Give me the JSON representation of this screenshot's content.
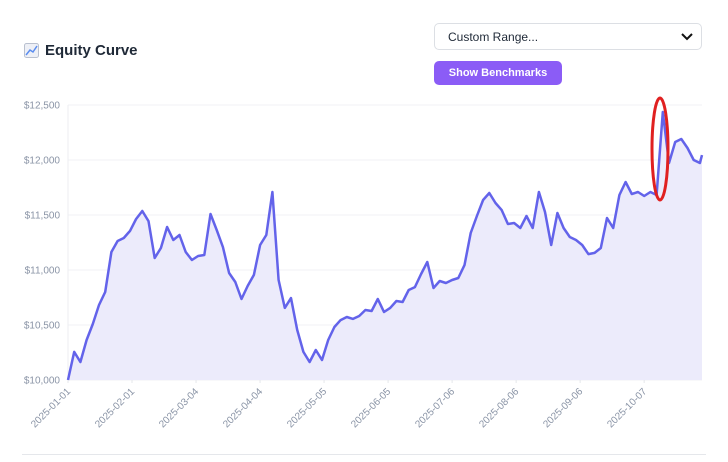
{
  "header": {
    "title": "Equity Curve",
    "range_select": "Custom Range...",
    "button": "Show Benchmarks"
  },
  "chart_data": {
    "type": "line",
    "color": "#6363ea",
    "fill": "#ecebfb",
    "grid": true,
    "x": [
      "2025-01-01",
      "2025-01-04",
      "2025-01-07",
      "2025-01-10",
      "2025-01-13",
      "2025-01-16",
      "2025-01-19",
      "2025-01-22",
      "2025-01-25",
      "2025-01-28",
      "2025-01-31",
      "2025-02-03",
      "2025-02-06",
      "2025-02-09",
      "2025-02-12",
      "2025-02-15",
      "2025-02-18",
      "2025-02-21",
      "2025-02-24",
      "2025-02-27",
      "2025-03-02",
      "2025-03-05",
      "2025-03-08",
      "2025-03-11",
      "2025-03-14",
      "2025-03-17",
      "2025-03-20",
      "2025-03-23",
      "2025-03-26",
      "2025-03-29",
      "2025-04-01",
      "2025-04-04",
      "2025-04-07",
      "2025-04-10",
      "2025-04-13",
      "2025-04-16",
      "2025-04-19",
      "2025-04-22",
      "2025-04-25",
      "2025-04-28",
      "2025-05-01",
      "2025-05-04",
      "2025-05-07",
      "2025-05-10",
      "2025-05-13",
      "2025-05-16",
      "2025-05-19",
      "2025-05-22",
      "2025-05-25",
      "2025-05-28",
      "2025-05-31",
      "2025-06-03",
      "2025-06-06",
      "2025-06-09",
      "2025-06-12",
      "2025-06-15",
      "2025-06-18",
      "2025-06-21",
      "2025-06-24",
      "2025-06-27",
      "2025-06-30",
      "2025-07-03",
      "2025-07-06",
      "2025-07-09",
      "2025-07-12",
      "2025-07-15",
      "2025-07-18",
      "2025-07-21",
      "2025-07-24",
      "2025-07-27",
      "2025-07-30",
      "2025-08-02",
      "2025-08-05",
      "2025-08-08",
      "2025-08-11",
      "2025-08-14",
      "2025-08-17",
      "2025-08-20",
      "2025-08-23",
      "2025-08-26",
      "2025-08-29",
      "2025-09-01",
      "2025-09-04",
      "2025-09-07",
      "2025-09-10",
      "2025-09-13",
      "2025-09-16",
      "2025-09-19",
      "2025-09-22",
      "2025-09-25",
      "2025-09-28",
      "2025-10-01",
      "2025-10-04",
      "2025-10-07",
      "2025-10-10",
      "2025-10-13",
      "2025-10-16",
      "2025-10-19",
      "2025-10-22",
      "2025-10-25",
      "2025-10-28",
      "2025-10-31",
      "2025-11-03",
      "2025-11-04"
    ],
    "values": [
      10000,
      10255,
      10164,
      10364,
      10509,
      10682,
      10800,
      11164,
      11264,
      11291,
      11355,
      11464,
      11536,
      11445,
      11109,
      11200,
      11391,
      11273,
      11318,
      11164,
      11091,
      11127,
      11136,
      11509,
      11364,
      11209,
      10973,
      10891,
      10736,
      10855,
      10955,
      11227,
      11318,
      11709,
      10909,
      10655,
      10745,
      10455,
      10255,
      10164,
      10273,
      10182,
      10364,
      10482,
      10545,
      10573,
      10555,
      10582,
      10636,
      10627,
      10736,
      10618,
      10655,
      10718,
      10709,
      10818,
      10845,
      10964,
      11073,
      10836,
      10900,
      10882,
      10909,
      10927,
      11045,
      11336,
      11491,
      11636,
      11700,
      11609,
      11545,
      11418,
      11427,
      11382,
      11491,
      11382,
      11709,
      11527,
      11227,
      11518,
      11382,
      11300,
      11273,
      11227,
      11145,
      11155,
      11200,
      11473,
      11382,
      11682,
      11800,
      11691,
      11709,
      11673,
      11709,
      11682,
      12436,
      11973,
      12164,
      12191,
      12109,
      12000,
      11973,
      12045
    ],
    "xlim": [
      "2025-01-01",
      "2025-11-04"
    ],
    "xticks": [
      "2025-01-01",
      "2025-02-01",
      "2025-03-04",
      "2025-04-04",
      "2025-05-05",
      "2025-06-05",
      "2025-07-06",
      "2025-08-06",
      "2025-09-06",
      "2025-10-07"
    ],
    "ylim": [
      10000,
      12500
    ],
    "yticks": [
      {
        "value": 10000,
        "label": "$10,000"
      },
      {
        "value": 10500,
        "label": "$10,500"
      },
      {
        "value": 11000,
        "label": "$11,000"
      },
      {
        "value": 11500,
        "label": "$11,500"
      },
      {
        "value": 12000,
        "label": "$12,000"
      },
      {
        "value": 12500,
        "label": "$12,500"
      }
    ]
  }
}
